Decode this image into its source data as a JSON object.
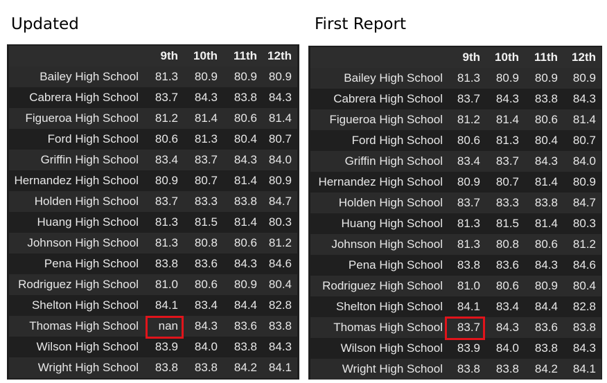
{
  "captions": {
    "left": "Updated",
    "right": "First Report"
  },
  "columns": [
    "",
    "9th",
    "10th",
    "11th",
    "12th"
  ],
  "updated_rows": [
    {
      "school": "Bailey High School",
      "v": [
        "81.3",
        "80.9",
        "80.9",
        "80.9"
      ]
    },
    {
      "school": "Cabrera High School",
      "v": [
        "83.7",
        "84.3",
        "83.8",
        "84.3"
      ]
    },
    {
      "school": "Figueroa High School",
      "v": [
        "81.2",
        "81.4",
        "80.6",
        "81.4"
      ]
    },
    {
      "school": "Ford High School",
      "v": [
        "80.6",
        "81.3",
        "80.4",
        "80.7"
      ]
    },
    {
      "school": "Griffin High School",
      "v": [
        "83.4",
        "83.7",
        "84.3",
        "84.0"
      ]
    },
    {
      "school": "Hernandez High School",
      "v": [
        "80.9",
        "80.7",
        "81.4",
        "80.9"
      ]
    },
    {
      "school": "Holden High School",
      "v": [
        "83.7",
        "83.3",
        "83.8",
        "84.7"
      ]
    },
    {
      "school": "Huang High School",
      "v": [
        "81.3",
        "81.5",
        "81.4",
        "80.3"
      ]
    },
    {
      "school": "Johnson High School",
      "v": [
        "81.3",
        "80.8",
        "80.6",
        "81.2"
      ]
    },
    {
      "school": "Pena High School",
      "v": [
        "83.8",
        "83.6",
        "84.3",
        "84.6"
      ]
    },
    {
      "school": "Rodriguez High School",
      "v": [
        "81.0",
        "80.6",
        "80.9",
        "80.4"
      ]
    },
    {
      "school": "Shelton High School",
      "v": [
        "84.1",
        "83.4",
        "84.4",
        "82.8"
      ]
    },
    {
      "school": "Thomas High School",
      "v": [
        "nan",
        "84.3",
        "83.6",
        "83.8"
      ]
    },
    {
      "school": "Wilson High School",
      "v": [
        "83.9",
        "84.0",
        "83.8",
        "84.3"
      ]
    },
    {
      "school": "Wright High School",
      "v": [
        "83.8",
        "83.8",
        "84.2",
        "84.1"
      ]
    }
  ],
  "first_report_rows": [
    {
      "school": "Bailey High School",
      "v": [
        "81.3",
        "80.9",
        "80.9",
        "80.9"
      ]
    },
    {
      "school": "Cabrera High School",
      "v": [
        "83.7",
        "84.3",
        "83.8",
        "84.3"
      ]
    },
    {
      "school": "Figueroa High School",
      "v": [
        "81.2",
        "81.4",
        "80.6",
        "81.4"
      ]
    },
    {
      "school": "Ford High School",
      "v": [
        "80.6",
        "81.3",
        "80.4",
        "80.7"
      ]
    },
    {
      "school": "Griffin High School",
      "v": [
        "83.4",
        "83.7",
        "84.3",
        "84.0"
      ]
    },
    {
      "school": "Hernandez High School",
      "v": [
        "80.9",
        "80.7",
        "81.4",
        "80.9"
      ]
    },
    {
      "school": "Holden High School",
      "v": [
        "83.7",
        "83.3",
        "83.8",
        "84.7"
      ]
    },
    {
      "school": "Huang High School",
      "v": [
        "81.3",
        "81.5",
        "81.4",
        "80.3"
      ]
    },
    {
      "school": "Johnson High School",
      "v": [
        "81.3",
        "80.8",
        "80.6",
        "81.2"
      ]
    },
    {
      "school": "Pena High School",
      "v": [
        "83.8",
        "83.6",
        "84.3",
        "84.6"
      ]
    },
    {
      "school": "Rodriguez High School",
      "v": [
        "81.0",
        "80.6",
        "80.9",
        "80.4"
      ]
    },
    {
      "school": "Shelton High School",
      "v": [
        "84.1",
        "83.4",
        "84.4",
        "82.8"
      ]
    },
    {
      "school": "Thomas High School",
      "v": [
        "83.7",
        "84.3",
        "83.6",
        "83.8"
      ]
    },
    {
      "school": "Wilson High School",
      "v": [
        "83.9",
        "84.0",
        "83.8",
        "84.3"
      ]
    },
    {
      "school": "Wright High School",
      "v": [
        "83.8",
        "83.8",
        "84.2",
        "84.1"
      ]
    }
  ],
  "highlight": {
    "row": 12,
    "col": 0,
    "color": "#e0141b"
  }
}
